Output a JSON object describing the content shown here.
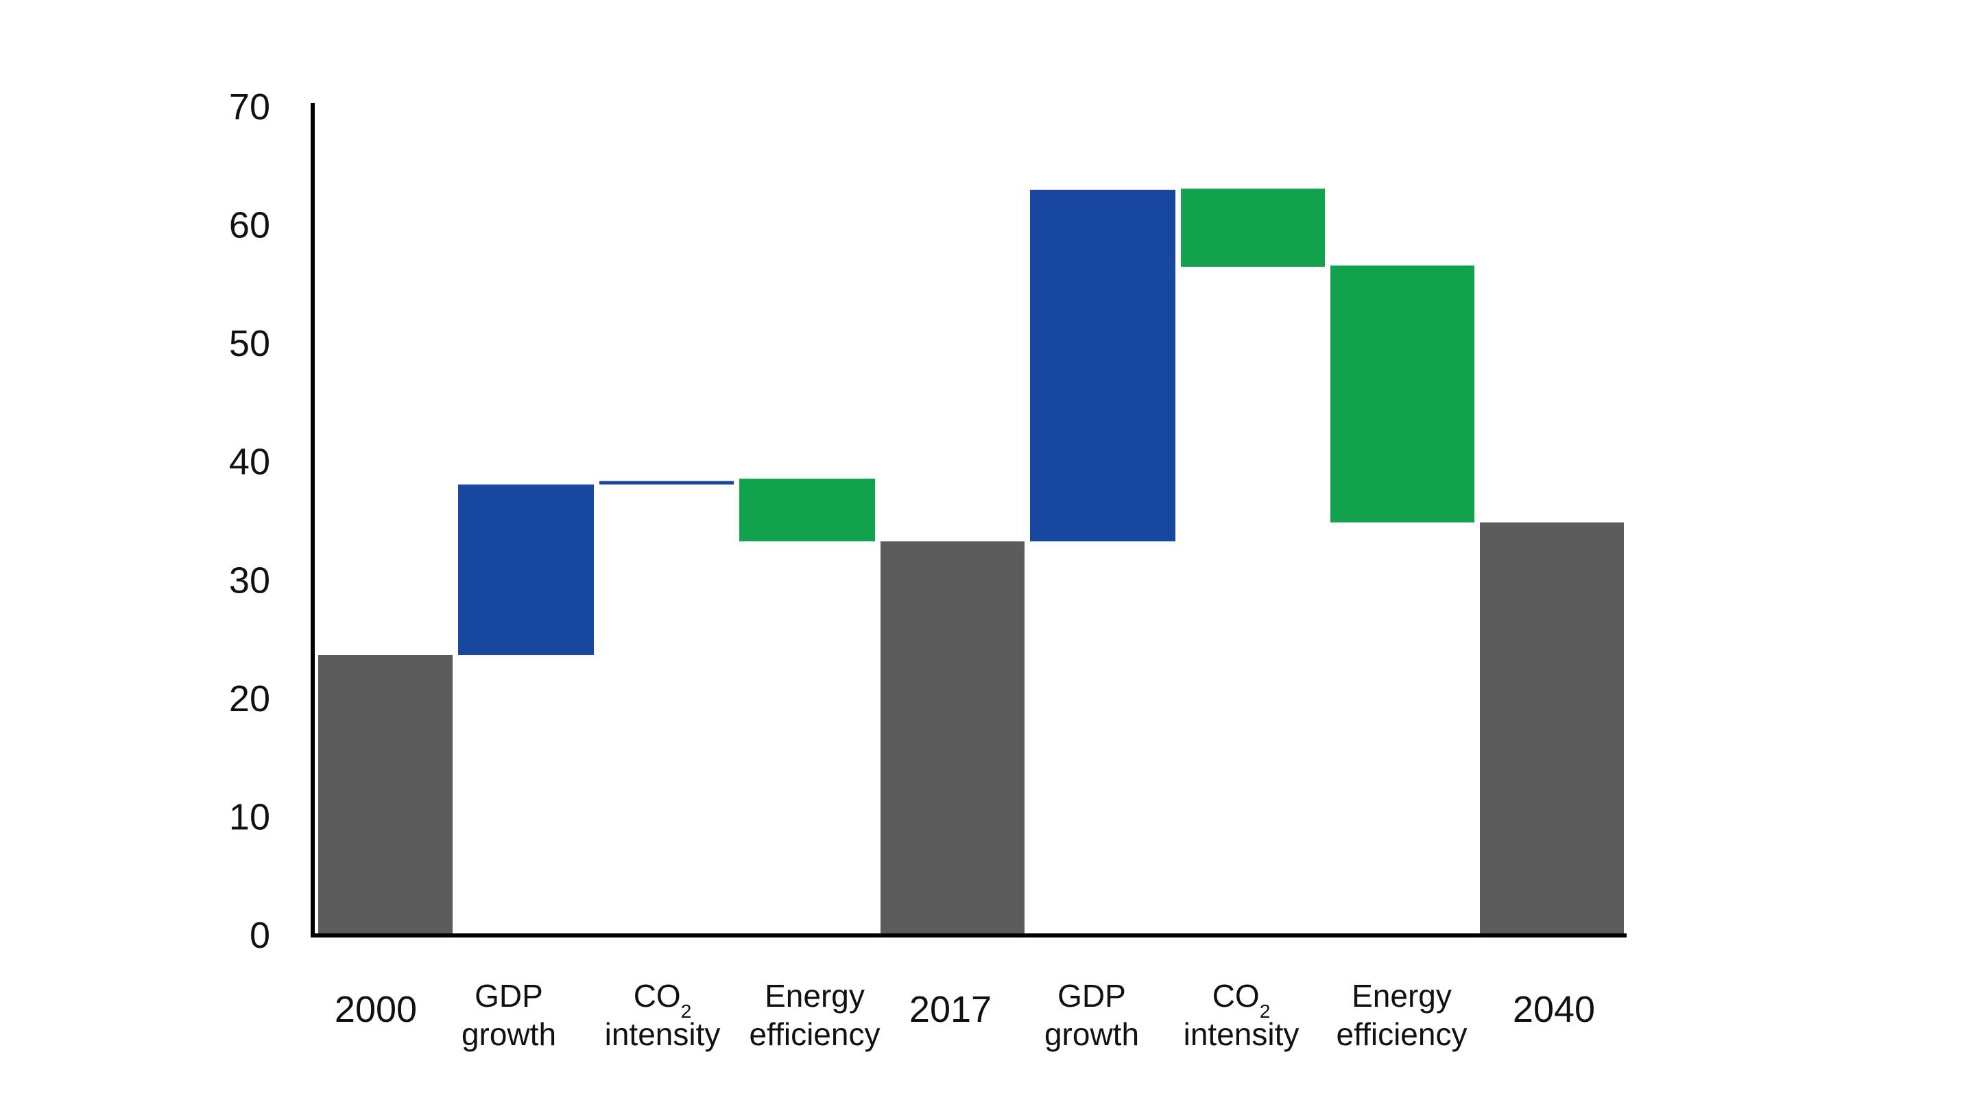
{
  "chart_data": {
    "type": "bar",
    "subtype": "waterfall",
    "title": "",
    "xlabel": "",
    "ylabel": "",
    "ylim": [
      0,
      70
    ],
    "yticks": [
      0,
      10,
      20,
      30,
      40,
      50,
      60,
      70
    ],
    "grid": false,
    "legend": "none",
    "bars": [
      {
        "label_lines": [
          "2000"
        ],
        "kind": "total",
        "bottom": 0,
        "top": 23.7
      },
      {
        "label_lines": [
          "GDP",
          "growth"
        ],
        "kind": "increase",
        "bottom": 23.7,
        "top": 38.1
      },
      {
        "label_lines": [
          "CO",
          "intensity"
        ],
        "subscript": "2",
        "kind": "increase",
        "bottom": 38.1,
        "top": 38.4
      },
      {
        "label_lines": [
          "Energy",
          "efficiency"
        ],
        "kind": "decrease",
        "bottom": 33.3,
        "top": 38.6
      },
      {
        "label_lines": [
          "2017"
        ],
        "kind": "total",
        "bottom": 0,
        "top": 33.3
      },
      {
        "label_lines": [
          "GDP",
          "growth"
        ],
        "kind": "increase",
        "bottom": 33.3,
        "top": 63.0
      },
      {
        "label_lines": [
          "CO",
          "intensity"
        ],
        "subscript": "2",
        "kind": "decrease",
        "bottom": 56.5,
        "top": 63.1
      },
      {
        "label_lines": [
          "Energy",
          "efficiency"
        ],
        "kind": "decrease",
        "bottom": 34.9,
        "top": 56.6
      },
      {
        "label_lines": [
          "2040"
        ],
        "kind": "total",
        "bottom": 0,
        "top": 34.9
      }
    ],
    "colors": {
      "total": "#5b5c5b",
      "increase": "#17479e",
      "decrease": "#12a24e",
      "axis": "#000000"
    }
  }
}
